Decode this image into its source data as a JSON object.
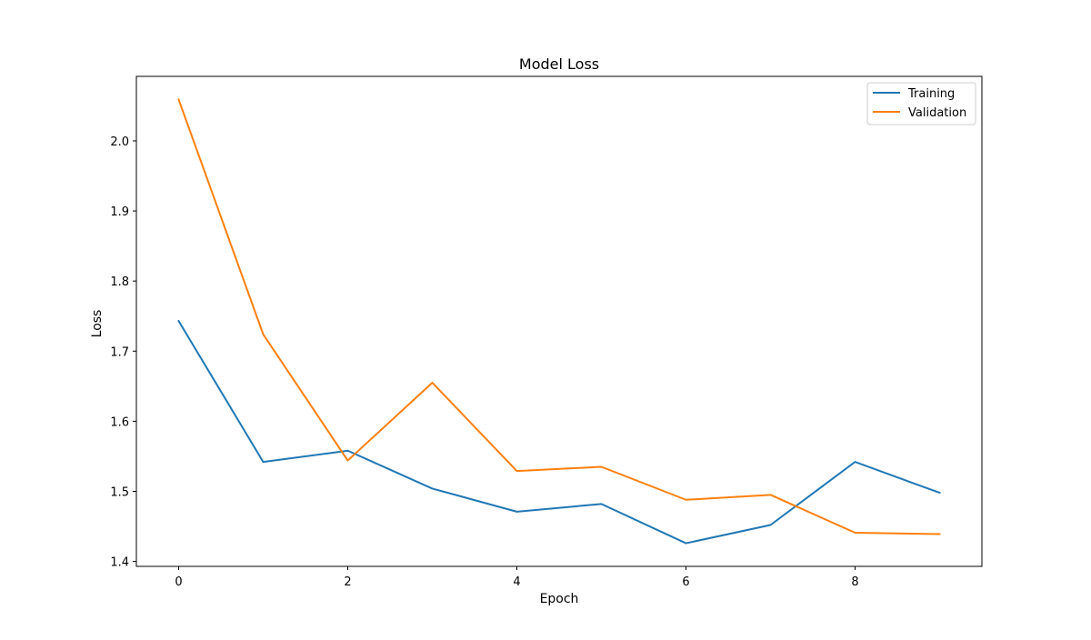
{
  "chart_data": {
    "type": "line",
    "title": "Model Loss",
    "xlabel": "Epoch",
    "ylabel": "Loss",
    "x": [
      0,
      1,
      2,
      3,
      4,
      5,
      6,
      7,
      8,
      9
    ],
    "series": [
      {
        "name": "Training",
        "color": "#1f77b4",
        "values": [
          1.743,
          1.542,
          1.558,
          1.504,
          1.471,
          1.482,
          1.426,
          1.452,
          1.542,
          1.498
        ]
      },
      {
        "name": "Validation",
        "color": "#ff7f0e",
        "values": [
          2.059,
          1.724,
          1.544,
          1.655,
          1.529,
          1.535,
          1.488,
          1.495,
          1.441,
          1.439
        ]
      }
    ],
    "xlim": [
      -0.5,
      9.5
    ],
    "ylim": [
      1.393,
      2.092
    ],
    "xticks": [
      0,
      2,
      4,
      6,
      8
    ],
    "xtick_labels": [
      "0",
      "2",
      "4",
      "6",
      "8"
    ],
    "yticks": [
      1.4,
      1.5,
      1.6,
      1.7,
      1.8,
      1.9,
      2.0
    ],
    "ytick_labels": [
      "1.4",
      "1.5",
      "1.6",
      "1.7",
      "1.8",
      "1.9",
      "2.0"
    ],
    "grid": false,
    "legend_position": "top-right"
  }
}
